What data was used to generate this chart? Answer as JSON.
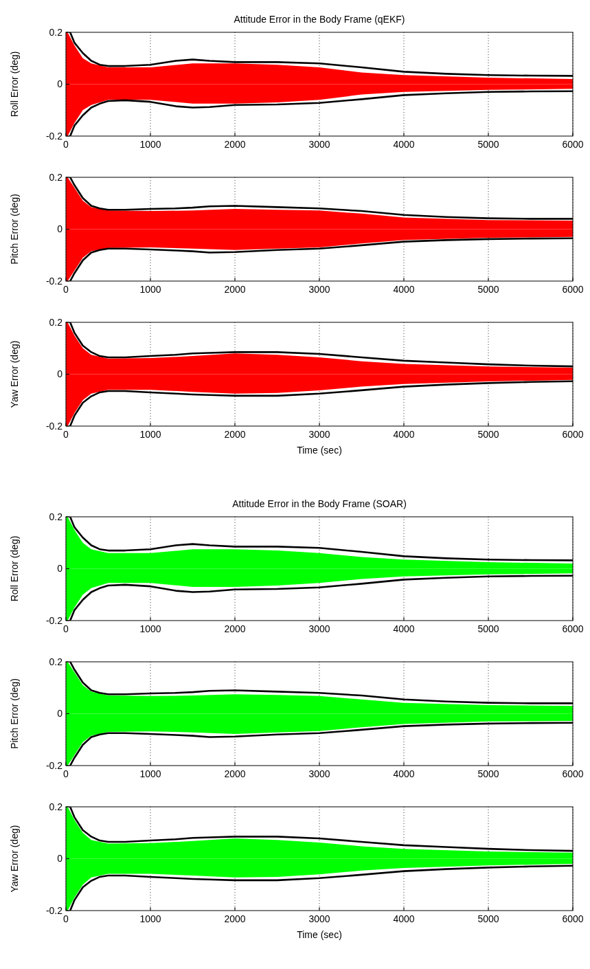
{
  "chart_data": [
    {
      "type": "line",
      "title": "Attitude Error in the Body Frame (qEKF)",
      "ylabel": "Roll Error (deg)",
      "xlim": [
        0,
        6000
      ],
      "xticks": [
        0,
        1000,
        2000,
        3000,
        4000,
        5000,
        6000
      ],
      "ylim": [
        -0.2,
        0.2
      ],
      "yticks": [
        -0.2,
        0,
        0.2
      ],
      "grid": "x",
      "line_style": "solid",
      "series": [
        {
          "type": "area",
          "color": "#ff0000",
          "x": [
            0,
            20,
            100,
            200,
            300,
            500,
            1000,
            1500,
            2000,
            2500,
            3000,
            3500,
            4000,
            5000,
            6000
          ],
          "values": [
            0.2,
            0.2,
            0.15,
            0.1,
            0.08,
            0.065,
            0.065,
            0.08,
            0.08,
            0.075,
            0.065,
            0.045,
            0.035,
            0.025,
            0.02
          ]
        },
        {
          "type": "area",
          "color": "#ff0000",
          "x": [
            0,
            20,
            100,
            200,
            300,
            500,
            1000,
            1500,
            2000,
            2500,
            3000,
            3500,
            4000,
            5000,
            6000
          ],
          "values": [
            -0.2,
            -0.2,
            -0.15,
            -0.1,
            -0.08,
            -0.06,
            -0.06,
            -0.075,
            -0.075,
            -0.07,
            -0.06,
            -0.04,
            -0.03,
            -0.022,
            -0.018
          ]
        },
        {
          "type": "line",
          "color": "#000000",
          "x": [
            50,
            100,
            200,
            300,
            400,
            500,
            700,
            1000,
            1300,
            1500,
            1700,
            2000,
            2500,
            3000,
            3500,
            4000,
            4500,
            5000,
            5500,
            6000
          ],
          "values": [
            0.2,
            0.16,
            0.12,
            0.09,
            0.075,
            0.07,
            0.07,
            0.075,
            0.09,
            0.095,
            0.09,
            0.085,
            0.085,
            0.08,
            0.065,
            0.048,
            0.04,
            0.035,
            0.033,
            0.032
          ]
        },
        {
          "type": "line",
          "color": "#000000",
          "x": [
            50,
            100,
            200,
            300,
            400,
            500,
            700,
            1000,
            1300,
            1500,
            1700,
            2000,
            2500,
            3000,
            3500,
            4000,
            4500,
            5000,
            5500,
            6000
          ],
          "values": [
            -0.2,
            -0.16,
            -0.12,
            -0.09,
            -0.075,
            -0.065,
            -0.062,
            -0.068,
            -0.085,
            -0.09,
            -0.088,
            -0.08,
            -0.078,
            -0.072,
            -0.058,
            -0.042,
            -0.035,
            -0.03,
            -0.028,
            -0.027
          ]
        }
      ]
    },
    {
      "type": "line",
      "ylabel": "Pitch Error (deg)",
      "xlim": [
        0,
        6000
      ],
      "xticks": [
        0,
        1000,
        2000,
        3000,
        4000,
        5000,
        6000
      ],
      "ylim": [
        -0.2,
        0.2
      ],
      "yticks": [
        -0.2,
        0,
        0.2
      ],
      "grid": "x",
      "line_style": "solid",
      "series": [
        {
          "type": "area",
          "color": "#ff0000",
          "x": [
            0,
            20,
            100,
            200,
            300,
            500,
            1000,
            1500,
            2000,
            2500,
            3000,
            3500,
            4000,
            5000,
            6000
          ],
          "values": [
            0.2,
            0.2,
            0.16,
            0.11,
            0.085,
            0.072,
            0.07,
            0.072,
            0.078,
            0.075,
            0.072,
            0.06,
            0.045,
            0.035,
            0.033
          ]
        },
        {
          "type": "area",
          "color": "#ff0000",
          "x": [
            0,
            20,
            100,
            200,
            300,
            500,
            1000,
            1500,
            2000,
            2500,
            3000,
            3500,
            4000,
            5000,
            6000
          ],
          "values": [
            -0.2,
            -0.2,
            -0.16,
            -0.11,
            -0.085,
            -0.072,
            -0.07,
            -0.075,
            -0.08,
            -0.075,
            -0.07,
            -0.055,
            -0.042,
            -0.033,
            -0.03
          ]
        },
        {
          "type": "line",
          "color": "#000000",
          "x": [
            50,
            100,
            200,
            300,
            400,
            500,
            700,
            1000,
            1300,
            1500,
            1700,
            2000,
            2500,
            3000,
            3500,
            4000,
            4500,
            5000,
            5500,
            6000
          ],
          "values": [
            0.2,
            0.17,
            0.12,
            0.09,
            0.08,
            0.075,
            0.075,
            0.078,
            0.08,
            0.083,
            0.088,
            0.09,
            0.085,
            0.08,
            0.07,
            0.055,
            0.047,
            0.042,
            0.04,
            0.04
          ]
        },
        {
          "type": "line",
          "color": "#000000",
          "x": [
            50,
            100,
            200,
            300,
            400,
            500,
            700,
            1000,
            1300,
            1500,
            1700,
            2000,
            2500,
            3000,
            3500,
            4000,
            4500,
            5000,
            5500,
            6000
          ],
          "values": [
            -0.2,
            -0.17,
            -0.12,
            -0.09,
            -0.08,
            -0.075,
            -0.075,
            -0.078,
            -0.082,
            -0.085,
            -0.09,
            -0.088,
            -0.08,
            -0.075,
            -0.062,
            -0.048,
            -0.042,
            -0.038,
            -0.036,
            -0.035
          ]
        }
      ]
    },
    {
      "type": "line",
      "ylabel": "Yaw Error (deg)",
      "xlabel": "Time (sec)",
      "xlim": [
        0,
        6000
      ],
      "xticks": [
        0,
        1000,
        2000,
        3000,
        4000,
        5000,
        6000
      ],
      "ylim": [
        -0.2,
        0.2
      ],
      "yticks": [
        -0.2,
        0,
        0.2
      ],
      "grid": "x",
      "line_style": "solid",
      "series": [
        {
          "type": "area",
          "color": "#ff0000",
          "x": [
            0,
            20,
            100,
            200,
            300,
            500,
            1000,
            1500,
            2000,
            2500,
            3000,
            3500,
            4000,
            5000,
            6000
          ],
          "values": [
            0.2,
            0.2,
            0.15,
            0.1,
            0.075,
            0.06,
            0.062,
            0.07,
            0.08,
            0.075,
            0.065,
            0.05,
            0.04,
            0.03,
            0.025
          ]
        },
        {
          "type": "area",
          "color": "#ff0000",
          "x": [
            0,
            20,
            100,
            200,
            300,
            500,
            1000,
            1500,
            2000,
            2500,
            3000,
            3500,
            4000,
            5000,
            6000
          ],
          "values": [
            -0.2,
            -0.2,
            -0.15,
            -0.1,
            -0.075,
            -0.06,
            -0.06,
            -0.068,
            -0.075,
            -0.072,
            -0.062,
            -0.048,
            -0.038,
            -0.028,
            -0.022
          ]
        },
        {
          "type": "line",
          "color": "#000000",
          "x": [
            50,
            100,
            200,
            300,
            400,
            500,
            700,
            1000,
            1300,
            1500,
            1700,
            2000,
            2500,
            3000,
            3500,
            4000,
            4500,
            5000,
            5500,
            6000
          ],
          "values": [
            0.2,
            0.16,
            0.11,
            0.085,
            0.07,
            0.065,
            0.065,
            0.07,
            0.075,
            0.08,
            0.082,
            0.085,
            0.085,
            0.078,
            0.065,
            0.052,
            0.045,
            0.038,
            0.033,
            0.03
          ]
        },
        {
          "type": "line",
          "color": "#000000",
          "x": [
            50,
            100,
            200,
            300,
            400,
            500,
            700,
            1000,
            1300,
            1500,
            1700,
            2000,
            2500,
            3000,
            3500,
            4000,
            4500,
            5000,
            5500,
            6000
          ],
          "values": [
            -0.2,
            -0.16,
            -0.11,
            -0.085,
            -0.07,
            -0.065,
            -0.065,
            -0.07,
            -0.075,
            -0.078,
            -0.08,
            -0.083,
            -0.083,
            -0.075,
            -0.062,
            -0.048,
            -0.04,
            -0.034,
            -0.03,
            -0.027
          ]
        }
      ]
    },
    {
      "type": "line",
      "title": "Attitude Error in the Body Frame (SOAR)",
      "ylabel": "Roll Error (deg)",
      "xlim": [
        0,
        6000
      ],
      "xticks": [
        0,
        1000,
        2000,
        3000,
        4000,
        5000,
        6000
      ],
      "ylim": [
        -0.2,
        0.2
      ],
      "yticks": [
        -0.2,
        0,
        0.2
      ],
      "grid": "x",
      "line_style": "solid",
      "series": [
        {
          "type": "area",
          "color": "#00ff00",
          "x": [
            0,
            20,
            100,
            200,
            300,
            500,
            1000,
            1500,
            2000,
            2500,
            3000,
            3500,
            4000,
            5000,
            6000
          ],
          "values": [
            0.2,
            0.2,
            0.15,
            0.1,
            0.075,
            0.06,
            0.06,
            0.075,
            0.075,
            0.07,
            0.06,
            0.045,
            0.035,
            0.025,
            0.02
          ]
        },
        {
          "type": "area",
          "color": "#00ff00",
          "x": [
            0,
            20,
            100,
            200,
            300,
            500,
            1000,
            1500,
            2000,
            2500,
            3000,
            3500,
            4000,
            5000,
            6000
          ],
          "values": [
            -0.2,
            -0.2,
            -0.15,
            -0.1,
            -0.075,
            -0.055,
            -0.055,
            -0.07,
            -0.07,
            -0.065,
            -0.055,
            -0.04,
            -0.03,
            -0.022,
            -0.018
          ]
        },
        {
          "type": "line",
          "color": "#000000",
          "x": [
            50,
            100,
            200,
            300,
            400,
            500,
            700,
            1000,
            1300,
            1500,
            1700,
            2000,
            2500,
            3000,
            3500,
            4000,
            4500,
            5000,
            5500,
            6000
          ],
          "values": [
            0.2,
            0.16,
            0.12,
            0.09,
            0.075,
            0.07,
            0.07,
            0.075,
            0.09,
            0.095,
            0.09,
            0.085,
            0.085,
            0.08,
            0.065,
            0.048,
            0.04,
            0.035,
            0.033,
            0.032
          ]
        },
        {
          "type": "line",
          "color": "#000000",
          "x": [
            50,
            100,
            200,
            300,
            400,
            500,
            700,
            1000,
            1300,
            1500,
            1700,
            2000,
            2500,
            3000,
            3500,
            4000,
            4500,
            5000,
            5500,
            6000
          ],
          "values": [
            -0.2,
            -0.16,
            -0.12,
            -0.09,
            -0.075,
            -0.065,
            -0.062,
            -0.068,
            -0.085,
            -0.09,
            -0.088,
            -0.08,
            -0.078,
            -0.072,
            -0.058,
            -0.042,
            -0.035,
            -0.03,
            -0.028,
            -0.027
          ]
        }
      ]
    },
    {
      "type": "line",
      "ylabel": "Pitch Error (deg)",
      "xlim": [
        0,
        6000
      ],
      "xticks": [
        0,
        1000,
        2000,
        3000,
        4000,
        5000,
        6000
      ],
      "ylim": [
        -0.2,
        0.2
      ],
      "yticks": [
        -0.2,
        0,
        0.2
      ],
      "grid": "x",
      "line_style": "solid",
      "series": [
        {
          "type": "area",
          "color": "#00ff00",
          "x": [
            0,
            20,
            100,
            200,
            300,
            500,
            1000,
            1500,
            2000,
            2500,
            3000,
            3500,
            4000,
            5000,
            6000
          ],
          "values": [
            0.2,
            0.2,
            0.16,
            0.11,
            0.085,
            0.07,
            0.068,
            0.07,
            0.075,
            0.072,
            0.068,
            0.055,
            0.042,
            0.033,
            0.03
          ]
        },
        {
          "type": "area",
          "color": "#00ff00",
          "x": [
            0,
            20,
            100,
            200,
            300,
            500,
            1000,
            1500,
            2000,
            2500,
            3000,
            3500,
            4000,
            5000,
            6000
          ],
          "values": [
            -0.2,
            -0.2,
            -0.16,
            -0.11,
            -0.085,
            -0.07,
            -0.068,
            -0.072,
            -0.078,
            -0.072,
            -0.067,
            -0.052,
            -0.04,
            -0.03,
            -0.028
          ]
        },
        {
          "type": "line",
          "color": "#000000",
          "x": [
            50,
            100,
            200,
            300,
            400,
            500,
            700,
            1000,
            1300,
            1500,
            1700,
            2000,
            2500,
            3000,
            3500,
            4000,
            4500,
            5000,
            5500,
            6000
          ],
          "values": [
            0.2,
            0.17,
            0.12,
            0.09,
            0.08,
            0.075,
            0.075,
            0.078,
            0.08,
            0.083,
            0.088,
            0.09,
            0.085,
            0.08,
            0.07,
            0.055,
            0.047,
            0.042,
            0.04,
            0.04
          ]
        },
        {
          "type": "line",
          "color": "#000000",
          "x": [
            50,
            100,
            200,
            300,
            400,
            500,
            700,
            1000,
            1300,
            1500,
            1700,
            2000,
            2500,
            3000,
            3500,
            4000,
            4500,
            5000,
            5500,
            6000
          ],
          "values": [
            -0.2,
            -0.17,
            -0.12,
            -0.09,
            -0.08,
            -0.075,
            -0.075,
            -0.078,
            -0.082,
            -0.085,
            -0.09,
            -0.088,
            -0.08,
            -0.075,
            -0.062,
            -0.048,
            -0.042,
            -0.038,
            -0.036,
            -0.035
          ]
        }
      ]
    },
    {
      "type": "line",
      "ylabel": "Yaw Error (deg)",
      "xlabel": "Time (sec)",
      "xlim": [
        0,
        6000
      ],
      "xticks": [
        0,
        1000,
        2000,
        3000,
        4000,
        5000,
        6000
      ],
      "ylim": [
        -0.2,
        0.2
      ],
      "yticks": [
        -0.2,
        0,
        0.2
      ],
      "grid": "x",
      "line_style": "solid",
      "series": [
        {
          "type": "area",
          "color": "#00ff00",
          "x": [
            0,
            20,
            100,
            200,
            300,
            500,
            1000,
            1500,
            2000,
            2500,
            3000,
            3500,
            4000,
            5000,
            6000
          ],
          "values": [
            0.2,
            0.2,
            0.15,
            0.1,
            0.072,
            0.058,
            0.06,
            0.068,
            0.078,
            0.072,
            0.062,
            0.048,
            0.038,
            0.028,
            0.023
          ]
        },
        {
          "type": "area",
          "color": "#00ff00",
          "x": [
            0,
            20,
            100,
            200,
            300,
            500,
            1000,
            1500,
            2000,
            2500,
            3000,
            3500,
            4000,
            5000,
            6000
          ],
          "values": [
            -0.2,
            -0.2,
            -0.15,
            -0.1,
            -0.072,
            -0.058,
            -0.058,
            -0.065,
            -0.072,
            -0.07,
            -0.06,
            -0.046,
            -0.036,
            -0.026,
            -0.02
          ]
        },
        {
          "type": "line",
          "color": "#000000",
          "x": [
            50,
            100,
            200,
            300,
            400,
            500,
            700,
            1000,
            1300,
            1500,
            1700,
            2000,
            2500,
            3000,
            3500,
            4000,
            4500,
            5000,
            5500,
            6000
          ],
          "values": [
            0.2,
            0.16,
            0.11,
            0.085,
            0.07,
            0.065,
            0.065,
            0.07,
            0.075,
            0.08,
            0.082,
            0.085,
            0.085,
            0.078,
            0.065,
            0.052,
            0.045,
            0.038,
            0.033,
            0.03
          ]
        },
        {
          "type": "line",
          "color": "#000000",
          "x": [
            50,
            100,
            200,
            300,
            400,
            500,
            700,
            1000,
            1300,
            1500,
            1700,
            2000,
            2500,
            3000,
            3500,
            4000,
            4500,
            5000,
            5500,
            6000
          ],
          "values": [
            -0.2,
            -0.16,
            -0.11,
            -0.085,
            -0.07,
            -0.065,
            -0.065,
            -0.07,
            -0.075,
            -0.078,
            -0.08,
            -0.083,
            -0.083,
            -0.075,
            -0.062,
            -0.048,
            -0.04,
            -0.034,
            -0.03,
            -0.027
          ]
        }
      ]
    }
  ]
}
